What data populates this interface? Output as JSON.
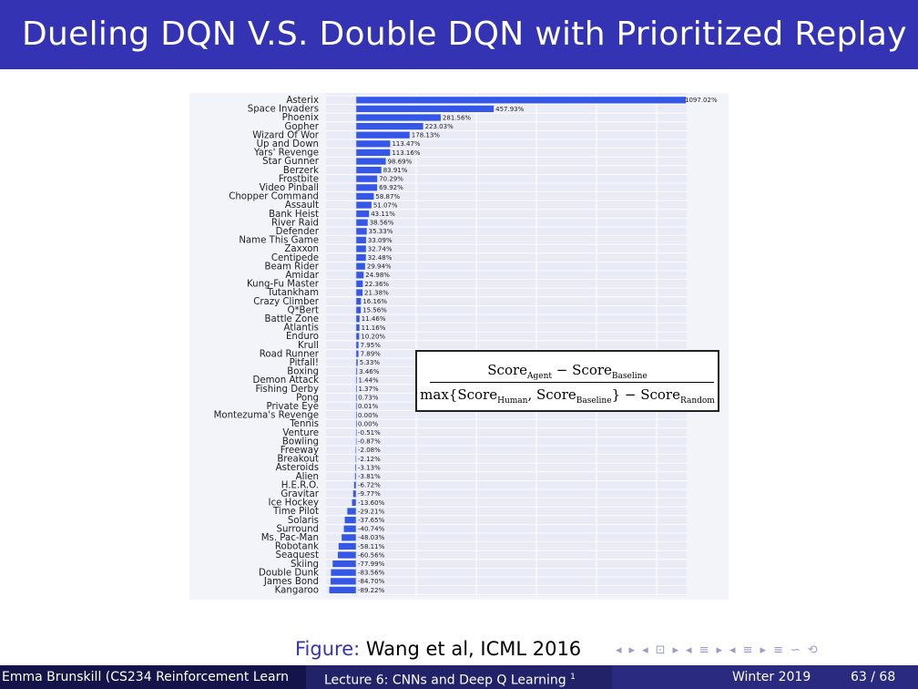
{
  "slide": {
    "title": "Dueling DQN V.S. Double DQN with Prioritized Replay",
    "caption_prefix": "Figure:",
    "caption_text": "Wang et al, ICML 2016"
  },
  "formula": {
    "num_score1": "Score",
    "num_sub1": "Agent",
    "num_minus": " − ",
    "num_score2": "Score",
    "num_sub2": "Baseline",
    "den_max": "max{",
    "den_score1": "Score",
    "den_sub1": "Human",
    "den_comma": ", ",
    "den_score2": "Score",
    "den_sub2": "Baseline",
    "den_close": "}",
    "den_minus": " − ",
    "den_score3": "Score",
    "den_sub3": "Random"
  },
  "footer": {
    "author": "Emma Brunskill (CS234 Reinforcement Learn",
    "lecture": "Lecture 6: CNNs and Deep Q Learning",
    "lecture_sup": "1",
    "term": "Winter 2019",
    "page": "63 / 68"
  },
  "nav": {
    "icons": [
      "◂",
      "▸",
      "◂",
      "⊡",
      "▸",
      "◂",
      "≡",
      "▸",
      "◂",
      "≡",
      "▸",
      "≡",
      "∽",
      "⟲"
    ]
  },
  "colors": {
    "bar": "#3557e8",
    "title_bar": "#3333b3",
    "footer_dark": "#14144a",
    "footer_mid": "#222268",
    "footer_light": "#2a2a80"
  },
  "chart_data": {
    "type": "bar",
    "orientation": "horizontal",
    "xlabel": "",
    "ylabel": "",
    "xlim": [
      -100,
      1100
    ],
    "grid": true,
    "categories": [
      "Asterix",
      "Space Invaders",
      "Phoenix",
      "Gopher",
      "Wizard Of Wor",
      "Up and Down",
      "Yars' Revenge",
      "Star Gunner",
      "Berzerk",
      "Frostbite",
      "Video Pinball",
      "Chopper Command",
      "Assault",
      "Bank Heist",
      "River Raid",
      "Defender",
      "Name This Game",
      "Zaxxon",
      "Centipede",
      "Beam Rider",
      "Amidar",
      "Kung-Fu Master",
      "Tutankham",
      "Crazy Climber",
      "Q*Bert",
      "Battle Zone",
      "Atlantis",
      "Enduro",
      "Krull",
      "Road Runner",
      "Pitfall!",
      "Boxing",
      "Demon Attack",
      "Fishing Derby",
      "Pong",
      "Private Eye",
      "Montezuma's Revenge",
      "Tennis",
      "Venture",
      "Bowling",
      "Freeway",
      "Breakout",
      "Asteroids",
      "Alien",
      "H.E.R.O.",
      "Gravitar",
      "Ice Hockey",
      "Time Pilot",
      "Solaris",
      "Surround",
      "Ms. Pac-Man",
      "Robotank",
      "Seaquest",
      "Skiing",
      "Double Dunk",
      "James Bond",
      "Kangaroo"
    ],
    "values": [
      1097.02,
      457.93,
      281.56,
      223.03,
      178.13,
      113.47,
      113.16,
      98.69,
      83.91,
      70.29,
      69.92,
      58.87,
      51.07,
      43.11,
      38.56,
      35.33,
      33.09,
      32.74,
      32.48,
      29.94,
      24.98,
      22.36,
      21.38,
      16.16,
      15.56,
      11.46,
      11.16,
      10.2,
      7.95,
      7.89,
      5.33,
      3.46,
      1.44,
      1.37,
      0.73,
      0.01,
      0.0,
      0.0,
      -0.51,
      -0.87,
      -2.08,
      -2.12,
      -3.13,
      -3.81,
      -6.72,
      -9.77,
      -13.6,
      -29.21,
      -37.65,
      -40.74,
      -48.03,
      -58.11,
      -60.56,
      -77.99,
      -83.56,
      -84.7,
      -89.22
    ],
    "labels": [
      "1097.02%",
      "457.93%",
      "281.56%",
      "223.03%",
      "178.13%",
      "113.47%",
      "113.16%",
      "98.69%",
      "83.91%",
      "70.29%",
      "69.92%",
      "58.87%",
      "51.07%",
      "43.11%",
      "38.56%",
      "35.33%",
      "33.09%",
      "32.74%",
      "32.48%",
      "29.94%",
      "24.98%",
      "22.36%",
      "21.38%",
      "16.16%",
      "15.56%",
      "11.46%",
      "11.16%",
      "10.20%",
      "7.95%",
      "7.89%",
      "5.33%",
      "3.46%",
      "1.44%",
      "1.37%",
      "0.73%",
      "0.01%",
      "0.00%",
      "0.00%",
      "-0.51%",
      "-0.87%",
      "-2.08%",
      "-2.12%",
      "-3.13%",
      "-3.81%",
      "-6.72%",
      "-9.77%",
      "-13.60%",
      "-29.21%",
      "-37.65%",
      "-40.74%",
      "-48.03%",
      "-58.11%",
      "-60.56%",
      "-77.99%",
      "-83.56%",
      "-84.70%",
      "-89.22%"
    ]
  }
}
